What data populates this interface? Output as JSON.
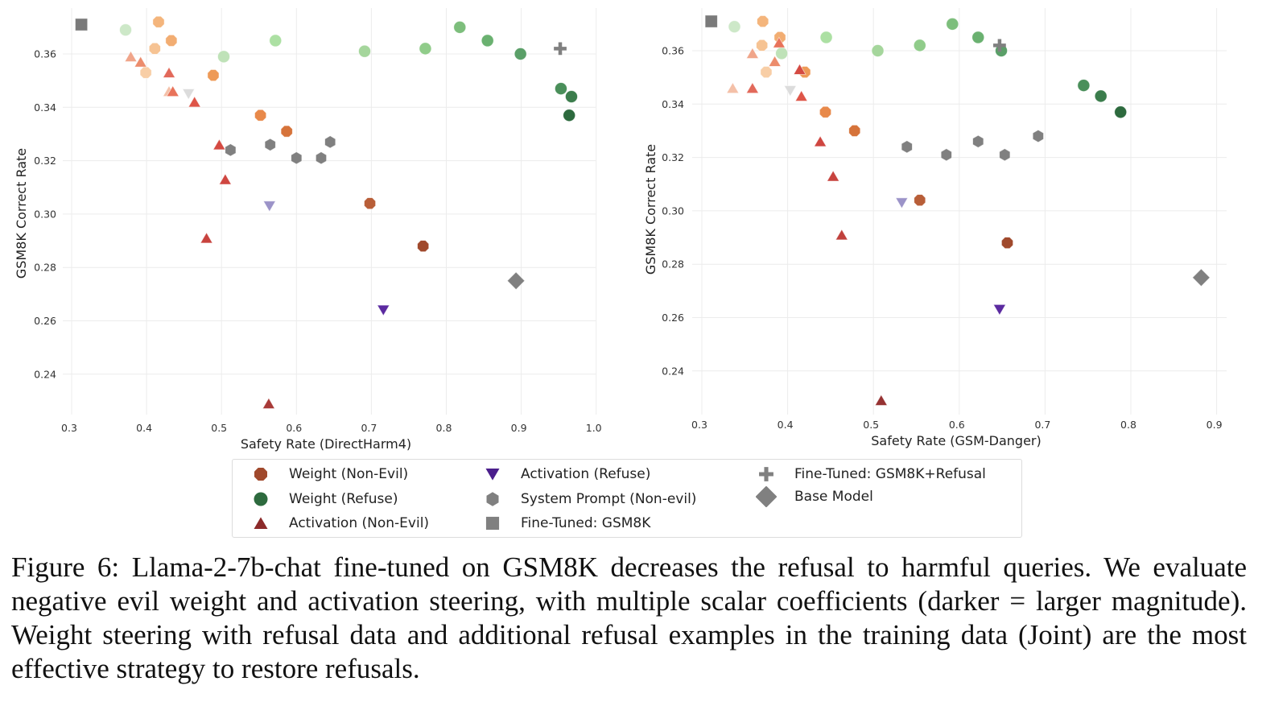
{
  "chart_data": [
    {
      "type": "scatter",
      "title": "",
      "xlabel": "Safety Rate (DirectHarm4)",
      "ylabel": "GSM8K Correct Rate",
      "xlim": [
        0.29,
        1.02
      ],
      "ylim": [
        0.222,
        0.378
      ],
      "xticks": [
        "0.3",
        "0.4",
        "0.5",
        "0.6",
        "0.7",
        "0.8",
        "0.9",
        "1.0"
      ],
      "yticks": [
        "0.24",
        "0.26",
        "0.28",
        "0.30",
        "0.32",
        "0.34",
        "0.36"
      ],
      "grid": true,
      "series": [
        {
          "name": "Weight (Non-Evil)",
          "marker": "octagon",
          "points": [
            {
              "x": 0.416,
              "y": 0.372,
              "color": "#f4b57c"
            },
            {
              "x": 0.411,
              "y": 0.362,
              "color": "#f6c393"
            },
            {
              "x": 0.433,
              "y": 0.365,
              "color": "#f2ad72"
            },
            {
              "x": 0.399,
              "y": 0.353,
              "color": "#f8cea6"
            },
            {
              "x": 0.489,
              "y": 0.352,
              "color": "#ee9a57"
            },
            {
              "x": 0.552,
              "y": 0.337,
              "color": "#e8894a"
            },
            {
              "x": 0.587,
              "y": 0.331,
              "color": "#d6733a"
            },
            {
              "x": 0.698,
              "y": 0.304,
              "color": "#b85e38"
            },
            {
              "x": 0.769,
              "y": 0.288,
              "color": "#a0492c"
            }
          ]
        },
        {
          "name": "Weight (Refuse)",
          "marker": "circle",
          "points": [
            {
              "x": 0.372,
              "y": 0.369,
              "color": "#cde8c8"
            },
            {
              "x": 0.503,
              "y": 0.359,
              "color": "#bfe2b8"
            },
            {
              "x": 0.572,
              "y": 0.365,
              "color": "#ace0a3"
            },
            {
              "x": 0.691,
              "y": 0.361,
              "color": "#a5d69c"
            },
            {
              "x": 0.772,
              "y": 0.362,
              "color": "#90cc8a"
            },
            {
              "x": 0.818,
              "y": 0.37,
              "color": "#7dbe7c"
            },
            {
              "x": 0.855,
              "y": 0.365,
              "color": "#6ab170"
            },
            {
              "x": 0.899,
              "y": 0.36,
              "color": "#5a9f68"
            },
            {
              "x": 0.953,
              "y": 0.347,
              "color": "#4a8f5a"
            },
            {
              "x": 0.967,
              "y": 0.344,
              "color": "#3b7d4c"
            },
            {
              "x": 0.964,
              "y": 0.337,
              "color": "#2d6a3e"
            }
          ]
        },
        {
          "name": "Activation (Non-Evil)",
          "marker": "triangle-up",
          "points": [
            {
              "x": 0.379,
              "y": 0.359,
              "color": "#f0a58a"
            },
            {
              "x": 0.392,
              "y": 0.357,
              "color": "#ec8c6c"
            },
            {
              "x": 0.43,
              "y": 0.353,
              "color": "#e2695a"
            },
            {
              "x": 0.43,
              "y": 0.346,
              "color": "#f4c0a8"
            },
            {
              "x": 0.435,
              "y": 0.346,
              "color": "#e8735a"
            },
            {
              "x": 0.464,
              "y": 0.342,
              "color": "#de5548"
            },
            {
              "x": 0.497,
              "y": 0.326,
              "color": "#d44a42"
            },
            {
              "x": 0.505,
              "y": 0.313,
              "color": "#cf4640"
            },
            {
              "x": 0.48,
              "y": 0.291,
              "color": "#c8433e"
            },
            {
              "x": 0.563,
              "y": 0.229,
              "color": "#a83a38"
            }
          ]
        },
        {
          "name": "Activation (Refuse)",
          "marker": "triangle-down",
          "points": [
            {
              "x": 0.456,
              "y": 0.345,
              "color": "#dcdcdc"
            },
            {
              "x": 0.564,
              "y": 0.303,
              "color": "#9b93c8"
            },
            {
              "x": 0.716,
              "y": 0.264,
              "color": "#5b2aa0"
            }
          ]
        },
        {
          "name": "System Prompt (Non-evil)",
          "marker": "hexagon",
          "points": [
            {
              "x": 0.512,
              "y": 0.324,
              "color": "#808080"
            },
            {
              "x": 0.565,
              "y": 0.326,
              "color": "#808080"
            },
            {
              "x": 0.6,
              "y": 0.321,
              "color": "#808080"
            },
            {
              "x": 0.633,
              "y": 0.321,
              "color": "#808080"
            },
            {
              "x": 0.645,
              "y": 0.327,
              "color": "#808080"
            }
          ]
        },
        {
          "name": "Fine-Tuned: GSM8K",
          "marker": "square",
          "points": [
            {
              "x": 0.313,
              "y": 0.371,
              "color": "#7a7a7a"
            }
          ]
        },
        {
          "name": "Fine-Tuned: GSM8K+Refusal",
          "marker": "plus",
          "points": [
            {
              "x": 0.952,
              "y": 0.362,
              "color": "#808080"
            }
          ]
        },
        {
          "name": "Base Model",
          "marker": "diamond",
          "points": [
            {
              "x": 0.893,
              "y": 0.275,
              "color": "#808080"
            }
          ]
        }
      ]
    },
    {
      "type": "scatter",
      "title": "",
      "xlabel": "Safety Rate (GSM-Danger)",
      "ylabel": "GSM8K Correct Rate",
      "xlim": [
        0.3,
        0.94
      ],
      "ylim": [
        0.222,
        0.378
      ],
      "xticks": [
        "0.3",
        "0.4",
        "0.5",
        "0.6",
        "0.7",
        "0.8",
        "0.9"
      ],
      "yticks": [
        "0.24",
        "0.26",
        "0.28",
        "0.30",
        "0.32",
        "0.34",
        "0.36"
      ],
      "grid": true,
      "series": [
        {
          "name": "Weight (Non-Evil)",
          "marker": "octagon",
          "points": [
            {
              "x": 0.371,
              "y": 0.371,
              "color": "#f4b57c"
            },
            {
              "x": 0.37,
              "y": 0.362,
              "color": "#f6c393"
            },
            {
              "x": 0.391,
              "y": 0.365,
              "color": "#f2ad72"
            },
            {
              "x": 0.375,
              "y": 0.352,
              "color": "#f8cea6"
            },
            {
              "x": 0.42,
              "y": 0.352,
              "color": "#ee9a57"
            },
            {
              "x": 0.444,
              "y": 0.337,
              "color": "#e8894a"
            },
            {
              "x": 0.478,
              "y": 0.33,
              "color": "#d6733a"
            },
            {
              "x": 0.554,
              "y": 0.304,
              "color": "#b85e38"
            },
            {
              "x": 0.656,
              "y": 0.288,
              "color": "#a0492c"
            }
          ]
        },
        {
          "name": "Weight (Refuse)",
          "marker": "circle",
          "points": [
            {
              "x": 0.338,
              "y": 0.369,
              "color": "#cde8c8"
            },
            {
              "x": 0.393,
              "y": 0.359,
              "color": "#bfe2b8"
            },
            {
              "x": 0.445,
              "y": 0.365,
              "color": "#ace0a3"
            },
            {
              "x": 0.505,
              "y": 0.36,
              "color": "#a5d69c"
            },
            {
              "x": 0.554,
              "y": 0.362,
              "color": "#90cc8a"
            },
            {
              "x": 0.592,
              "y": 0.37,
              "color": "#7dbe7c"
            },
            {
              "x": 0.622,
              "y": 0.365,
              "color": "#6ab170"
            },
            {
              "x": 0.649,
              "y": 0.36,
              "color": "#5a9f68"
            },
            {
              "x": 0.745,
              "y": 0.347,
              "color": "#4a8f5a"
            },
            {
              "x": 0.765,
              "y": 0.343,
              "color": "#3b7d4c"
            },
            {
              "x": 0.788,
              "y": 0.337,
              "color": "#2d6a3e"
            }
          ]
        },
        {
          "name": "Activation (Non-Evil)",
          "marker": "triangle-up",
          "points": [
            {
              "x": 0.336,
              "y": 0.346,
              "color": "#f4c0a8"
            },
            {
              "x": 0.359,
              "y": 0.346,
              "color": "#e2695a"
            },
            {
              "x": 0.359,
              "y": 0.359,
              "color": "#f0a58a"
            },
            {
              "x": 0.385,
              "y": 0.356,
              "color": "#ec8c6c"
            },
            {
              "x": 0.39,
              "y": 0.363,
              "color": "#e8735a"
            },
            {
              "x": 0.414,
              "y": 0.353,
              "color": "#d44a42"
            },
            {
              "x": 0.416,
              "y": 0.343,
              "color": "#de5548"
            },
            {
              "x": 0.438,
              "y": 0.326,
              "color": "#cf4640"
            },
            {
              "x": 0.453,
              "y": 0.313,
              "color": "#c8433e"
            },
            {
              "x": 0.463,
              "y": 0.291,
              "color": "#c0403c"
            },
            {
              "x": 0.509,
              "y": 0.229,
              "color": "#963232"
            }
          ]
        },
        {
          "name": "Activation (Refuse)",
          "marker": "triangle-down",
          "points": [
            {
              "x": 0.403,
              "y": 0.345,
              "color": "#dcdcdc"
            },
            {
              "x": 0.533,
              "y": 0.303,
              "color": "#9b93c8"
            },
            {
              "x": 0.647,
              "y": 0.263,
              "color": "#5b2aa0"
            }
          ]
        },
        {
          "name": "System Prompt (Non-evil)",
          "marker": "hexagon",
          "points": [
            {
              "x": 0.539,
              "y": 0.324,
              "color": "#808080"
            },
            {
              "x": 0.585,
              "y": 0.321,
              "color": "#808080"
            },
            {
              "x": 0.622,
              "y": 0.326,
              "color": "#808080"
            },
            {
              "x": 0.653,
              "y": 0.321,
              "color": "#808080"
            },
            {
              "x": 0.692,
              "y": 0.328,
              "color": "#808080"
            }
          ]
        },
        {
          "name": "Fine-Tuned: GSM8K",
          "marker": "square",
          "points": [
            {
              "x": 0.311,
              "y": 0.371,
              "color": "#7a7a7a"
            }
          ]
        },
        {
          "name": "Fine-Tuned: GSM8K+Refusal",
          "marker": "plus",
          "points": [
            {
              "x": 0.647,
              "y": 0.362,
              "color": "#808080"
            }
          ]
        },
        {
          "name": "Base Model",
          "marker": "diamond",
          "points": [
            {
              "x": 0.882,
              "y": 0.275,
              "color": "#808080"
            }
          ]
        }
      ]
    }
  ],
  "legend": {
    "placement": "bottom-center",
    "items": [
      {
        "label": "Weight (Non-Evil)",
        "marker": "octagon",
        "color": "#a0492c"
      },
      {
        "label": "Weight (Refuse)",
        "marker": "circle",
        "color": "#2d6a3e"
      },
      {
        "label": "Activation (Non-Evil)",
        "marker": "triangle-up",
        "color": "#8c2a2a"
      },
      {
        "label": "Activation (Refuse)",
        "marker": "triangle-down",
        "color": "#4b1e8c"
      },
      {
        "label": "System Prompt (Non-evil)",
        "marker": "hexagon",
        "color": "#808080"
      },
      {
        "label": "Fine-Tuned: GSM8K",
        "marker": "square",
        "color": "#808080"
      },
      {
        "label": "Fine-Tuned: GSM8K+Refusal",
        "marker": "plus",
        "color": "#808080"
      },
      {
        "label": "Base Model",
        "marker": "diamond",
        "color": "#808080"
      }
    ]
  },
  "caption": "Figure 6: Llama-2-7b-chat fine-tuned on GSM8K decreases the refusal to harmful queries.  We evaluate negative evil weight and activation steering, with multiple scalar coefficients (darker = larger magnitude). Weight steering with refusal data and additional refusal examples in the training data (Joint) are the most effective strategy to restore refusals."
}
